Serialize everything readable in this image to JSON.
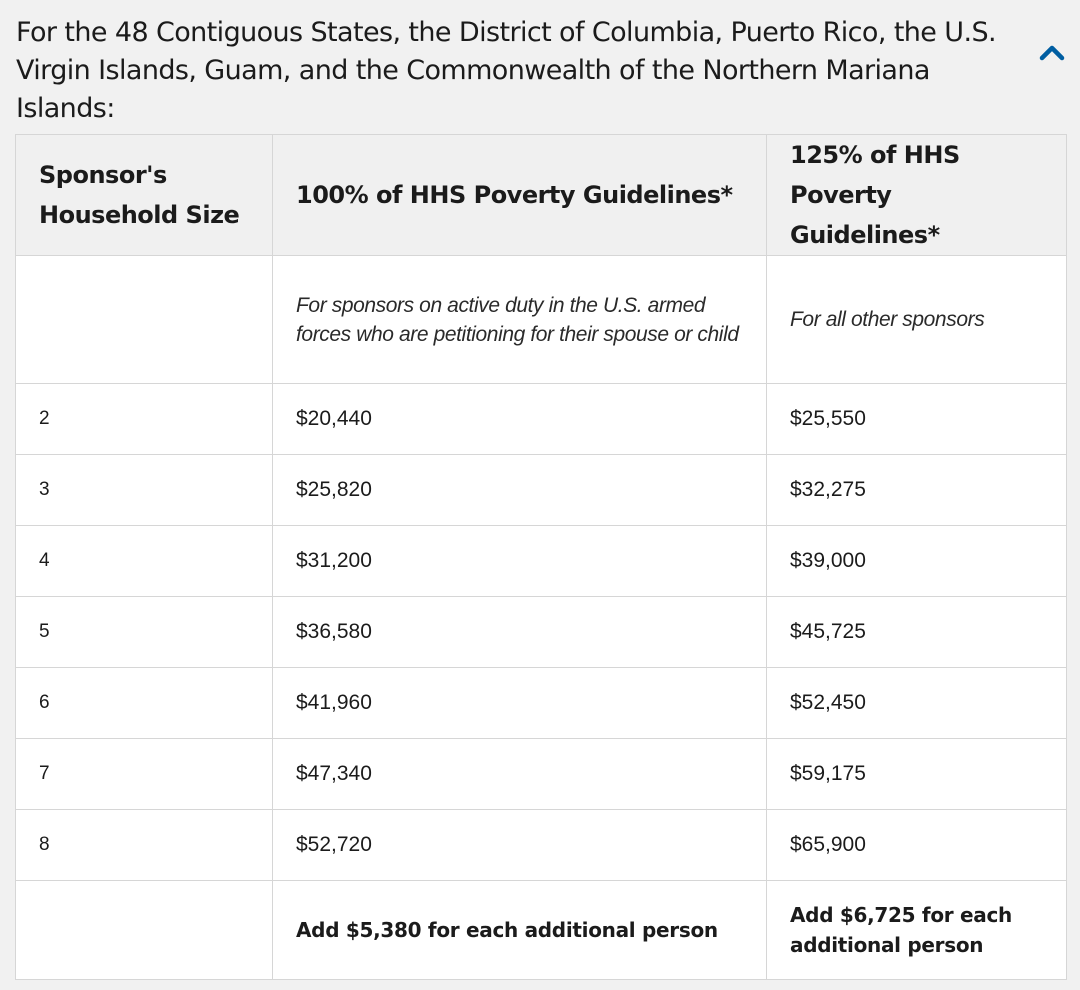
{
  "accordion": {
    "heading": "For the 48 Contiguous States, the District of Columbia, Puerto Rico, the U.S. Virgin Islands, Guam, and the Commonwealth of the Northern Mariana Islands:",
    "toggle_icon": "chevron-up-icon",
    "toggle_color": "#005ea2"
  },
  "table": {
    "headers": [
      "Sponsor's Household Size",
      "100% of HHS Poverty Guidelines*",
      "125% of HHS Poverty Guidelines*"
    ],
    "subheader": [
      "",
      "For sponsors on active duty in the U.S. armed forces who are petitioning for their spouse or child",
      "For all other sponsors"
    ],
    "rows": [
      [
        "2",
        "$20,440",
        "$25,550"
      ],
      [
        "3",
        "$25,820",
        "$32,275"
      ],
      [
        "4",
        "$31,200",
        "$39,000"
      ],
      [
        "5",
        "$36,580",
        "$45,725"
      ],
      [
        "6",
        "$41,960",
        "$52,450"
      ],
      [
        "7",
        "$47,340",
        "$59,175"
      ],
      [
        "8",
        "$52,720",
        "$65,900"
      ]
    ],
    "footer": [
      "",
      "Add $5,380 for each additional person",
      "Add $6,725 for each additional person"
    ]
  }
}
